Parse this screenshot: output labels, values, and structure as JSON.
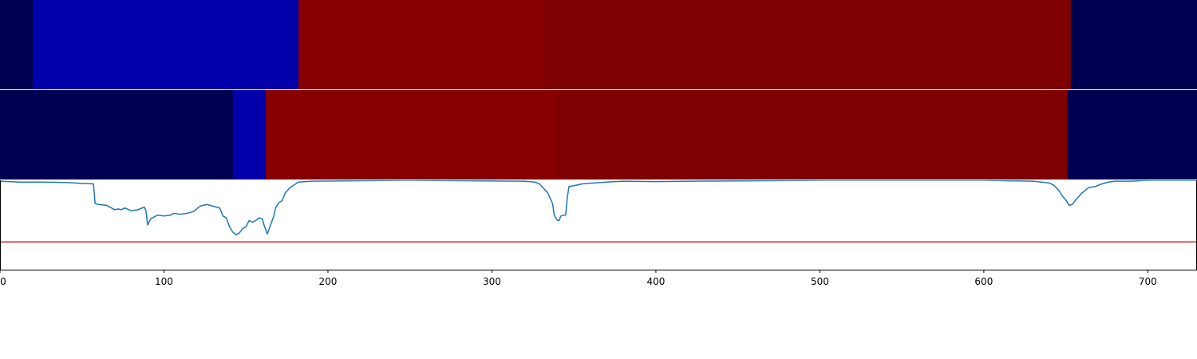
{
  "chart_data": {
    "type": "heatmap",
    "xlim": [
      0,
      730
    ],
    "x_ticks": [
      0,
      100,
      200,
      300,
      400,
      500,
      600,
      700
    ],
    "segment_tracks": [
      {
        "segments": [
          {
            "start": 0,
            "end": 20,
            "color": "#000050"
          },
          {
            "start": 20,
            "end": 182,
            "color": "#0000aa"
          },
          {
            "start": 182,
            "end": 332,
            "color": "#870000"
          },
          {
            "start": 332,
            "end": 653,
            "color": "#7f0000"
          },
          {
            "start": 653,
            "end": 730,
            "color": "#000050"
          }
        ]
      },
      {
        "segments": [
          {
            "start": 0,
            "end": 142,
            "color": "#000050"
          },
          {
            "start": 142,
            "end": 162,
            "color": "#0000aa"
          },
          {
            "start": 162,
            "end": 340,
            "color": "#870000"
          },
          {
            "start": 340,
            "end": 651,
            "color": "#7f0000"
          },
          {
            "start": 651,
            "end": 730,
            "color": "#000050"
          }
        ]
      }
    ],
    "line_panel": {
      "ylim": [
        0,
        1
      ],
      "threshold": 0.31,
      "threshold_color": "#d62728",
      "line_color": "#1f77b4",
      "x": [
        0,
        12,
        25,
        40,
        50,
        57,
        58,
        60,
        65,
        70,
        72,
        74,
        76,
        80,
        84,
        88,
        89,
        90,
        92,
        96,
        100,
        104,
        106,
        110,
        114,
        118,
        122,
        126,
        128,
        130,
        132,
        134,
        136,
        138,
        140,
        142,
        144,
        146,
        148,
        150,
        152,
        154,
        156,
        158,
        160,
        161,
        162,
        163,
        165,
        167,
        168,
        170,
        172,
        174,
        177,
        182,
        190,
        250,
        320,
        326,
        329,
        332,
        334,
        336,
        337,
        338,
        340,
        341,
        342,
        344,
        345,
        346,
        347,
        350,
        355,
        362,
        370,
        380,
        400,
        420,
        500,
        600,
        630,
        640,
        643,
        646,
        648,
        650,
        652,
        654,
        656,
        660,
        664,
        668,
        672,
        676,
        680,
        690,
        700,
        730
      ],
      "y": [
        0.99,
        0.98,
        0.98,
        0.975,
        0.965,
        0.96,
        0.74,
        0.73,
        0.72,
        0.67,
        0.68,
        0.67,
        0.69,
        0.66,
        0.67,
        0.7,
        0.66,
        0.5,
        0.57,
        0.61,
        0.6,
        0.61,
        0.63,
        0.62,
        0.63,
        0.65,
        0.71,
        0.73,
        0.72,
        0.71,
        0.7,
        0.69,
        0.6,
        0.58,
        0.48,
        0.42,
        0.39,
        0.41,
        0.46,
        0.48,
        0.55,
        0.53,
        0.55,
        0.58,
        0.57,
        0.5,
        0.45,
        0.4,
        0.5,
        0.6,
        0.69,
        0.75,
        0.77,
        0.86,
        0.92,
        0.98,
        0.99,
        1.0,
        0.99,
        0.98,
        0.96,
        0.9,
        0.86,
        0.78,
        0.74,
        0.61,
        0.55,
        0.55,
        0.6,
        0.61,
        0.61,
        0.81,
        0.93,
        0.94,
        0.96,
        0.97,
        0.98,
        0.99,
        0.985,
        0.99,
        1.0,
        1.0,
        0.99,
        0.97,
        0.94,
        0.88,
        0.82,
        0.78,
        0.72,
        0.73,
        0.78,
        0.86,
        0.92,
        0.93,
        0.96,
        0.98,
        0.99,
        0.99,
        1.0,
        1.0
      ]
    }
  }
}
